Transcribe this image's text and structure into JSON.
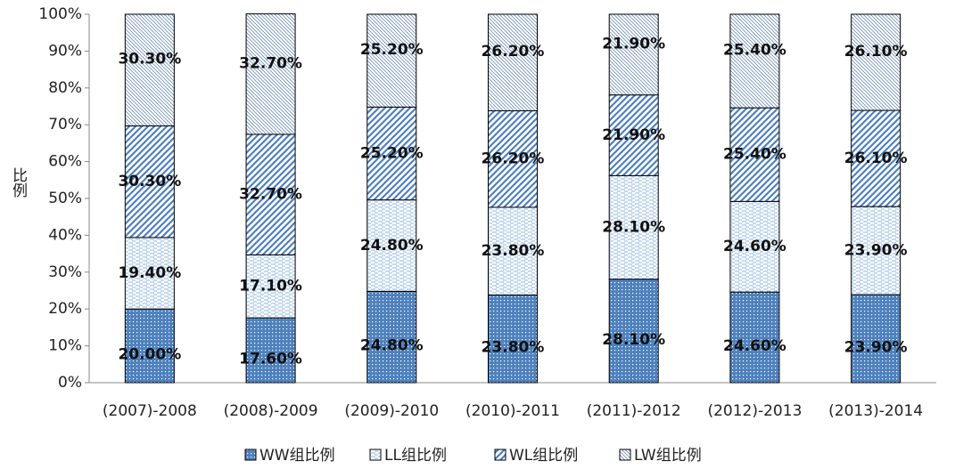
{
  "chart_data": {
    "type": "stacked_bar",
    "y_label": "比例",
    "categories": [
      "(2007)-2008",
      "(2008)-2009",
      "(2009)-2010",
      "(2010)-2011",
      "(2011)-2012",
      "(2012)-2013",
      "(2013)-2014"
    ],
    "series": [
      {
        "name": "WW组比例",
        "color": "#4f81bd",
        "values": [
          20.0,
          17.6,
          24.8,
          23.8,
          28.1,
          24.6,
          23.9
        ],
        "value_labels": [
          "20.00%",
          "17.60%",
          "24.80%",
          "23.80%",
          "28.10%",
          "24.60%",
          "23.90%"
        ]
      },
      {
        "name": "LL组比例",
        "color": "#8db3e2",
        "values": [
          19.4,
          17.1,
          24.8,
          23.8,
          28.1,
          24.6,
          23.9
        ],
        "value_labels": [
          "19.40%",
          "17.10%",
          "24.80%",
          "23.80%",
          "28.10%",
          "24.60%",
          "23.90%"
        ]
      },
      {
        "name": "WL组比例",
        "color": "#4f81bd",
        "values": [
          30.3,
          32.7,
          25.2,
          26.2,
          21.9,
          25.4,
          26.1
        ],
        "value_labels": [
          "30.30%",
          "32.70%",
          "25.20%",
          "26.20%",
          "21.90%",
          "25.40%",
          "26.10%"
        ]
      },
      {
        "name": "LW组比例",
        "color": "#6f8fb8",
        "values": [
          30.3,
          32.7,
          25.2,
          26.2,
          21.9,
          25.4,
          26.1
        ],
        "value_labels": [
          "30.30%",
          "32.70%",
          "25.20%",
          "26.20%",
          "21.90%",
          "25.40%",
          "26.10%"
        ]
      }
    ],
    "ylim": [
      0,
      100
    ],
    "yticks": [
      {
        "value": 0,
        "label": "0%"
      },
      {
        "value": 10,
        "label": "10%"
      },
      {
        "value": 20,
        "label": "20%"
      },
      {
        "value": 30,
        "label": "30%"
      },
      {
        "value": 40,
        "label": "40%"
      },
      {
        "value": 50,
        "label": "50%"
      },
      {
        "value": 60,
        "label": "60%"
      },
      {
        "value": 70,
        "label": "70%"
      },
      {
        "value": 80,
        "label": "80%"
      },
      {
        "value": 90,
        "label": "90%"
      },
      {
        "value": 100,
        "label": "100%"
      }
    ],
    "grid": false,
    "legend": "bottom"
  }
}
